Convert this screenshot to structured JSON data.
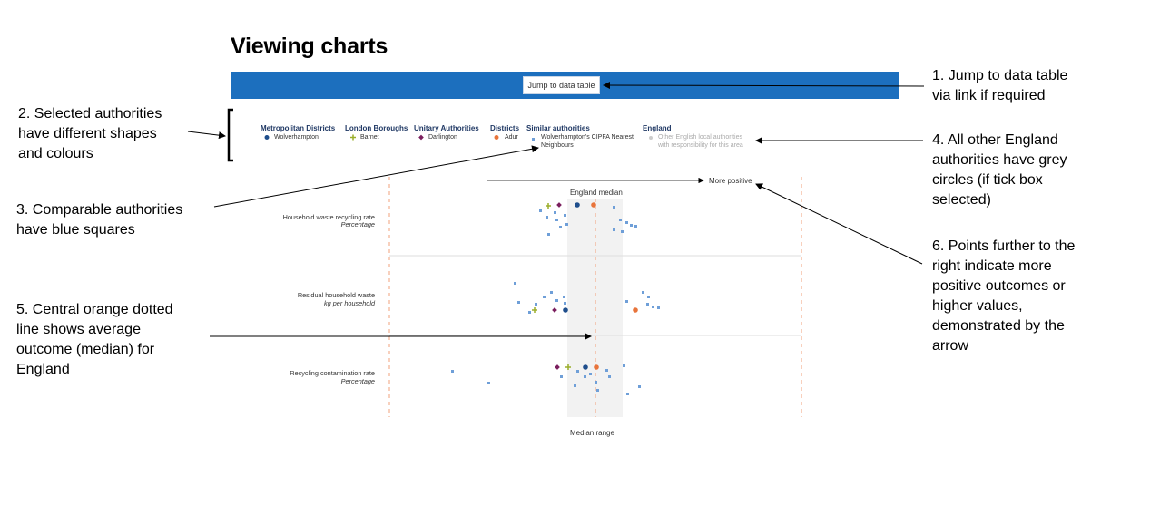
{
  "title": "Viewing charts",
  "jump_button": "Jump to data table",
  "legend": {
    "groups": [
      {
        "heading": "Metropolitan Districts",
        "item": "Wolverhampton",
        "color": "#1f4e8c",
        "shape": "circle"
      },
      {
        "heading": "London Boroughs",
        "item": "Barnet",
        "color": "#9aae2a",
        "shape": "plus"
      },
      {
        "heading": "Unitary Authorities",
        "item": "Darlington",
        "color": "#7b1f5e",
        "shape": "diamond"
      },
      {
        "heading": "Districts",
        "item": "Adur",
        "color": "#e8743b",
        "shape": "circle"
      },
      {
        "heading": "Similar authorities",
        "item_line1": "Wolverhampton's CIPFA Nearest",
        "item_line2": "Neighbours",
        "color": "#6f9fd8",
        "shape": "square"
      },
      {
        "heading": "England",
        "item_line1": "Other English local authorities",
        "item_line2": "with responsibility for this area",
        "color": "#cccccc",
        "shape": "circle"
      }
    ]
  },
  "chart": {
    "more_positive": "More positive",
    "england_median": "England median",
    "median_range": "Median range",
    "rows": [
      {
        "label": "Household waste recycling rate",
        "unit": "Percentage"
      },
      {
        "label": "Residual household waste",
        "unit": "kg per household"
      },
      {
        "label": "Recycling contamination rate",
        "unit": "Percentage"
      }
    ]
  },
  "callouts": {
    "c1": [
      "1. Jump to data table",
      "via link if required"
    ],
    "c2": [
      "2. Selected authorities",
      "have different shapes",
      "and colours"
    ],
    "c3": [
      "3. Comparable authorities",
      "have blue squares"
    ],
    "c4": [
      "4. All other England",
      "authorities have grey",
      "circles (if tick box",
      "selected)"
    ],
    "c5": [
      "5. Central orange dotted",
      "line shows average",
      "outcome (median) for",
      "England"
    ],
    "c6": [
      "6. Points further to the",
      "right indicate more",
      "positive outcomes or",
      "higher values,",
      "demonstrated by the",
      "arrow"
    ]
  },
  "colors": {
    "bar": "#1c6fbe",
    "neighbour": "#6f9fd8",
    "median_line": "#f2a07b"
  }
}
